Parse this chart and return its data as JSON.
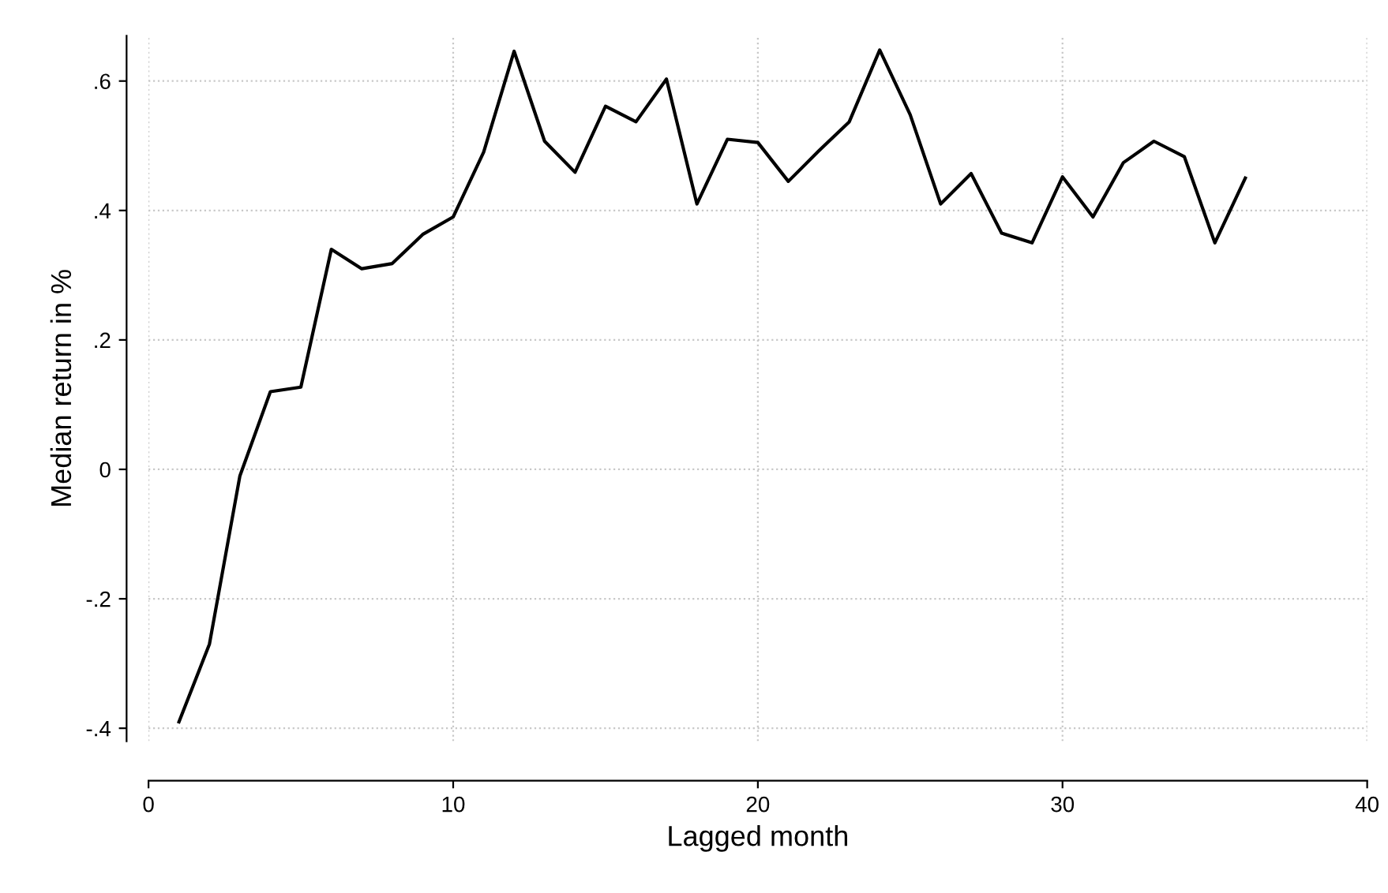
{
  "chart_data": {
    "type": "line",
    "xlabel": "Lagged month",
    "ylabel": "Median return in %",
    "x": [
      1,
      2,
      3,
      4,
      5,
      6,
      7,
      8,
      9,
      10,
      11,
      12,
      13,
      14,
      15,
      16,
      17,
      18,
      19,
      20,
      21,
      22,
      23,
      24,
      25,
      26,
      27,
      28,
      29,
      30,
      31,
      32,
      33,
      34,
      35,
      36
    ],
    "series": [
      {
        "color": "#000000",
        "values": [
          -0.39,
          -0.27,
          -0.01,
          0.12,
          0.127,
          0.34,
          0.31,
          0.318,
          0.363,
          0.39,
          0.49,
          0.646,
          0.507,
          0.459,
          0.561,
          0.537,
          0.603,
          0.41,
          0.51,
          0.505,
          0.445,
          0.492,
          0.537,
          0.648,
          0.548,
          0.41,
          0.457,
          0.365,
          0.35,
          0.452,
          0.39,
          0.474,
          0.507,
          0.483,
          0.35,
          0.45
        ]
      }
    ],
    "xlim": [
      0,
      40
    ],
    "xticks": [
      0,
      10,
      20,
      30,
      40
    ],
    "ylim": [
      -0.42,
      0.67
    ],
    "yticks": [
      {
        "value": -0.4,
        "label": "-.4"
      },
      {
        "value": -0.2,
        "label": "-.2"
      },
      {
        "value": 0,
        "label": "0"
      },
      {
        "value": 0.2,
        "label": ".2"
      },
      {
        "value": 0.4,
        "label": ".4"
      },
      {
        "value": 0.6,
        "label": ".6"
      }
    ],
    "grid": true,
    "line_style": "solid"
  }
}
